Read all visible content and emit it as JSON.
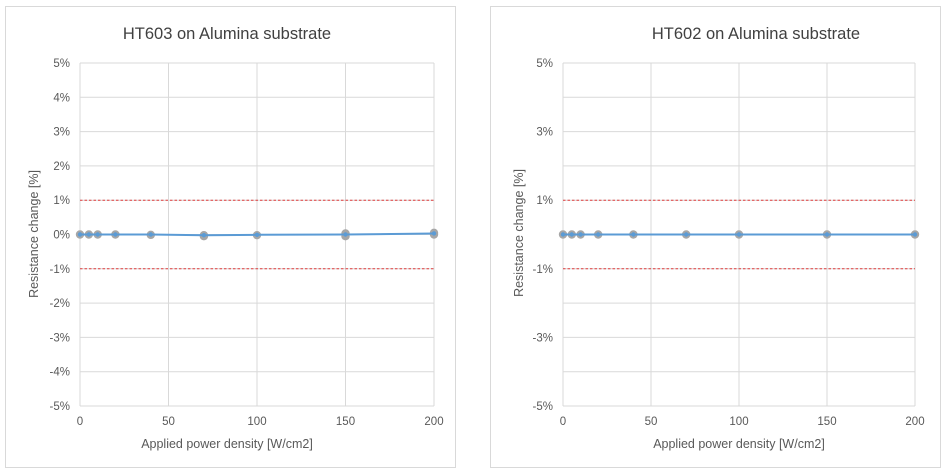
{
  "chart_data": [
    {
      "type": "line",
      "title": "HT603 on Alumina substrate",
      "xlabel": "Applied power density [W/cm2]",
      "ylabel": "Resistance change [%]",
      "xlim": [
        0,
        200
      ],
      "ylim": [
        -5,
        5
      ],
      "x_ticks": [
        0,
        50,
        100,
        150,
        200
      ],
      "x_tick_labels": [
        "0",
        "50",
        "100",
        "150",
        "200"
      ],
      "y_ticks": [
        5,
        4,
        3,
        2,
        1,
        0,
        -1,
        -2,
        -3,
        -4,
        -5
      ],
      "y_tick_labels": [
        "5%",
        "4%",
        "3%",
        "2%",
        "1%",
        "0%",
        "-1%",
        "-2%",
        "-3%",
        "-4%",
        "-5%"
      ],
      "grid": true,
      "series": [
        {
          "x": [
            0,
            5,
            10,
            20,
            40,
            70,
            100,
            150,
            200
          ],
          "y": [
            0.0,
            0.0,
            0.0,
            0.0,
            0.0,
            -0.02,
            -0.01,
            0.0,
            0.03
          ],
          "color": "#5b9bd5"
        }
      ],
      "scatter_points": {
        "x": [
          0,
          5,
          10,
          20,
          40,
          70,
          70,
          100,
          150,
          150,
          200,
          200
        ],
        "y": [
          0.0,
          0.0,
          0.0,
          0.0,
          -0.01,
          -0.02,
          -0.05,
          -0.02,
          0.03,
          -0.05,
          0.05,
          0.0
        ],
        "color": "#a6a6a6"
      },
      "reference_lines": [
        {
          "y": 1,
          "color": "#e03c3c",
          "style": "dashed"
        },
        {
          "y": -1,
          "color": "#e03c3c",
          "style": "dashed"
        }
      ]
    },
    {
      "type": "line",
      "title": "HT602 on Alumina substrate",
      "xlabel": "Applied power density [W/cm2]",
      "ylabel": "Resistance change [%]",
      "xlim": [
        0,
        200
      ],
      "ylim": [
        -5,
        5
      ],
      "x_ticks": [
        0,
        50,
        100,
        150,
        200
      ],
      "x_tick_labels": [
        "0",
        "50",
        "100",
        "150",
        "200"
      ],
      "y_ticks": [
        5,
        4,
        3,
        2,
        1,
        0,
        -1,
        -2,
        -3,
        -4,
        -5
      ],
      "y_tick_labels": [
        "5%",
        "",
        "3%",
        "",
        "1%",
        "",
        "-1%",
        "",
        "-3%",
        "",
        "-5%"
      ],
      "grid": true,
      "series": [
        {
          "x": [
            0,
            5,
            10,
            20,
            40,
            70,
            100,
            150,
            200
          ],
          "y": [
            0.0,
            0.0,
            0.0,
            0.0,
            0.0,
            0.0,
            0.0,
            0.0,
            0.0
          ],
          "color": "#5b9bd5"
        }
      ],
      "scatter_points": {
        "x": [
          0,
          5,
          10,
          20,
          40,
          70,
          100,
          150,
          200
        ],
        "y": [
          0.0,
          0.0,
          0.0,
          0.0,
          0.0,
          0.0,
          0.0,
          0.0,
          0.0
        ],
        "color": "#a6a6a6"
      },
      "reference_lines": [
        {
          "y": 1,
          "color": "#e03c3c",
          "style": "dashed"
        },
        {
          "y": -1,
          "color": "#e03c3c",
          "style": "dashed"
        }
      ]
    }
  ]
}
